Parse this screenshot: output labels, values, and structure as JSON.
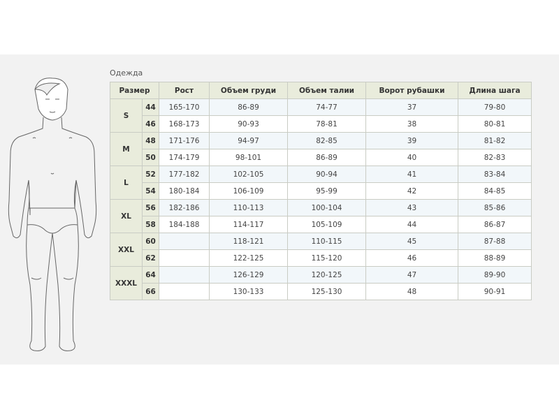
{
  "caption": "Одежда",
  "headers": [
    "Размер",
    "Рост",
    "Объем груди",
    "Объем талии",
    "Ворот рубашки",
    "Длина шага"
  ],
  "rows": [
    {
      "letter": "S",
      "size": "44",
      "height": "165-170",
      "chest": "86-89",
      "waist": "74-77",
      "collar": "37",
      "inseam": "79-80"
    },
    {
      "letter": "S",
      "size": "46",
      "height": "168-173",
      "chest": "90-93",
      "waist": "78-81",
      "collar": "38",
      "inseam": "80-81"
    },
    {
      "letter": "M",
      "size": "48",
      "height": "171-176",
      "chest": "94-97",
      "waist": "82-85",
      "collar": "39",
      "inseam": "81-82"
    },
    {
      "letter": "M",
      "size": "50",
      "height": "174-179",
      "chest": "98-101",
      "waist": "86-89",
      "collar": "40",
      "inseam": "82-83"
    },
    {
      "letter": "L",
      "size": "52",
      "height": "177-182",
      "chest": "102-105",
      "waist": "90-94",
      "collar": "41",
      "inseam": "83-84"
    },
    {
      "letter": "L",
      "size": "54",
      "height": "180-184",
      "chest": "106-109",
      "waist": "95-99",
      "collar": "42",
      "inseam": "84-85"
    },
    {
      "letter": "XL",
      "size": "56",
      "height": "182-186",
      "chest": "110-113",
      "waist": "100-104",
      "collar": "43",
      "inseam": "85-86"
    },
    {
      "letter": "XL",
      "size": "58",
      "height": "184-188",
      "chest": "114-117",
      "waist": "105-109",
      "collar": "44",
      "inseam": "86-87"
    },
    {
      "letter": "XXL",
      "size": "60",
      "height": "",
      "chest": "118-121",
      "waist": "110-115",
      "collar": "45",
      "inseam": "87-88"
    },
    {
      "letter": "XXL",
      "size": "62",
      "height": "",
      "chest": "122-125",
      "waist": "115-120",
      "collar": "46",
      "inseam": "88-89"
    },
    {
      "letter": "XXXL",
      "size": "64",
      "height": "",
      "chest": "126-129",
      "waist": "120-125",
      "collar": "47",
      "inseam": "89-90"
    },
    {
      "letter": "XXXL",
      "size": "66",
      "height": "",
      "chest": "130-133",
      "waist": "125-130",
      "collar": "48",
      "inseam": "90-91"
    }
  ]
}
